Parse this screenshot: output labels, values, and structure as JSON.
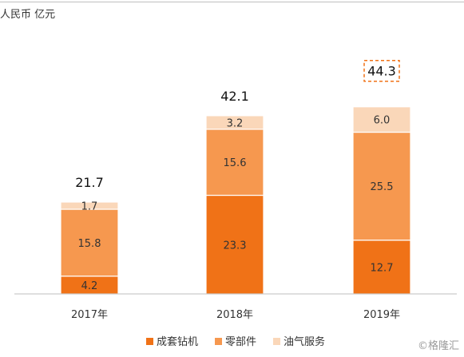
{
  "unit_label": "人民币 亿元",
  "watermark": "©格隆汇",
  "colors": {
    "drill": "#F07217",
    "parts": "#F6984F",
    "service": "#FAD7B9",
    "highlight": "#F07217"
  },
  "chart_data": {
    "type": "bar",
    "stacked": true,
    "categories": [
      "2017年",
      "2018年",
      "2019年"
    ],
    "series": [
      {
        "name": "成套钻机",
        "values": [
          4.2,
          23.3,
          12.7
        ]
      },
      {
        "name": "零部件",
        "values": [
          15.8,
          15.6,
          25.5
        ]
      },
      {
        "name": "油气服务",
        "values": [
          1.7,
          3.2,
          6.0
        ]
      }
    ],
    "totals": [
      "21.7",
      "42.1",
      "44.3"
    ],
    "highlight_total": "44.3",
    "value_labels": [
      [
        "4.2",
        "23.3",
        "12.7"
      ],
      [
        "15.8",
        "15.6",
        "25.5"
      ],
      [
        "1.7",
        "3.2",
        "6.0"
      ]
    ],
    "legend_position": "bottom",
    "grid": false,
    "ylim": [
      0,
      46
    ]
  }
}
